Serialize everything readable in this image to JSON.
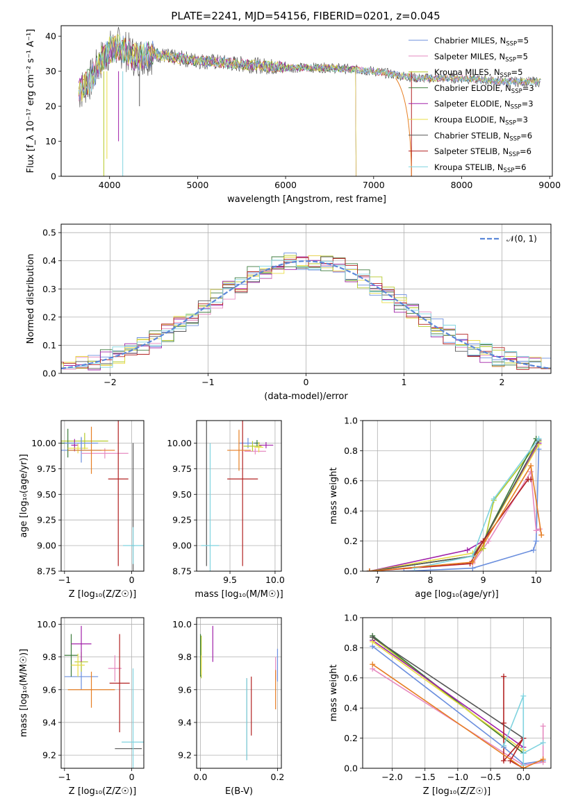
{
  "figure_title": "PLATE=2241, MJD=54156, FIBERID=0201, z=0.045",
  "colors": {
    "Chabrier MILES": "#6b8fde",
    "Salpeter MILES": "#e68ac0",
    "Kroupa MILES": "#b5c92a",
    "Chabrier ELODIE": "#3b7a3b",
    "Salpeter ELODIE": "#a020a8",
    "Kroupa ELODIE": "#e9dc45",
    "Chabrier STELIB": "#555555",
    "Salpeter STELIB": "#b22222",
    "Kroupa STELIB": "#7fd3df",
    "orange": "#e67e22",
    "gaussian": "#5b87d8"
  },
  "chart_data": [
    {
      "id": "spectrum",
      "type": "line",
      "xlabel": "wavelength [Angstrom, rest frame]",
      "ylabel": "Flux [f_λ 10⁻¹⁷ erg cm⁻² s⁻¹ A⁻¹]",
      "xlim": [
        3450,
        9030
      ],
      "ylim": [
        0,
        43
      ],
      "xticks": [
        4000,
        5000,
        6000,
        7000,
        8000,
        9000
      ],
      "yticks": [
        0,
        10,
        20,
        30,
        40
      ],
      "legend_position": "top-right",
      "legend": [
        {
          "label": "Chabrier MILES, N",
          "sub": "SSP",
          "tail": "=5"
        },
        {
          "label": "Salpeter MILES, N",
          "sub": "SSP",
          "tail": "=5"
        },
        {
          "label": "Kroupa MILES, N",
          "sub": "SSP",
          "tail": "=5"
        },
        {
          "label": "Chabrier ELODIE, N",
          "sub": "SSP",
          "tail": "=3"
        },
        {
          "label": "Salpeter ELODIE, N",
          "sub": "SSP",
          "tail": "=3"
        },
        {
          "label": "Kroupa ELODIE, N",
          "sub": "SSP",
          "tail": "=3"
        },
        {
          "label": "Chabrier STELIB, N",
          "sub": "SSP",
          "tail": "=6"
        },
        {
          "label": "Salpeter STELIB, N",
          "sub": "SSP",
          "tail": "=6"
        },
        {
          "label": "Kroupa STELIB, N",
          "sub": "SSP",
          "tail": "=6"
        }
      ],
      "data_envelope": {
        "x": [
          3650,
          3800,
          3900,
          4000,
          4100,
          4300,
          4500,
          4700,
          5000,
          5500,
          6000,
          6500,
          7000,
          7500,
          8000,
          8500,
          8900
        ],
        "y": [
          24,
          28,
          33,
          36,
          37,
          34,
          35,
          34,
          33,
          32,
          31,
          31,
          30,
          28,
          28,
          27,
          27
        ]
      }
    },
    {
      "id": "residuals",
      "type": "line",
      "xlabel": "(data-model)/error",
      "ylabel": "Normed distribution",
      "xlim": [
        -2.5,
        2.5
      ],
      "ylim": [
        0,
        0.53
      ],
      "xticks": [
        -2,
        -1,
        0,
        1,
        2
      ],
      "yticks": [
        0.0,
        0.1,
        0.2,
        0.3,
        0.4,
        0.5
      ],
      "grid": true,
      "legend_position": "top-right",
      "legend": [
        "𝒩(0, 1)"
      ]
    },
    {
      "id": "age_vs_Z",
      "type": "scatter",
      "xlabel": "Z [log₁₀(Z/Z☉)]",
      "ylabel": "age  [log₁₀(age/yr)]",
      "xlim": [
        -1.05,
        0.18
      ],
      "ylim": [
        8.75,
        10.22
      ],
      "xticks": [
        -1,
        0
      ],
      "yticks": [
        8.75,
        9.0,
        9.25,
        9.5,
        9.75,
        10.0
      ],
      "grid": true,
      "points": [
        {
          "c": "Chabrier MILES",
          "x": -0.75,
          "y": 9.93,
          "xe": 0.3,
          "ye": 0.12
        },
        {
          "c": "Salpeter MILES",
          "x": -0.4,
          "y": 9.9,
          "xe": 0.35,
          "ye": 0.05
        },
        {
          "c": "Kroupa MILES",
          "x": -0.7,
          "y": 10.02,
          "xe": 0.35,
          "ye": 0.08
        },
        {
          "c": "Chabrier ELODIE",
          "x": -0.95,
          "y": 10.0,
          "xe": 0.1,
          "ye": 0.14
        },
        {
          "c": "Salpeter ELODIE",
          "x": -0.85,
          "y": 9.98,
          "xe": 0.05,
          "ye": 0.06
        },
        {
          "c": "Kroupa ELODIE",
          "x": -0.8,
          "y": 9.95,
          "xe": 0.15,
          "ye": 0.05
        },
        {
          "c": "Chabrier STELIB",
          "x": 0.02,
          "y": 9.0,
          "xe": 0.02,
          "ye": 1.0
        },
        {
          "c": "Salpeter STELIB",
          "x": -0.2,
          "y": 9.65,
          "xe": 0.15,
          "ye": 0.85
        },
        {
          "c": "Kroupa STELIB",
          "x": 0.02,
          "y": 9.0,
          "xe": 0.15,
          "ye": 0.18
        },
        {
          "c": "orange",
          "x": -0.6,
          "y": 9.93,
          "xe": 0.35,
          "ye": 0.23
        },
        {
          "c": "Chabrier MILES",
          "x": -0.75,
          "y": 10.0,
          "xe": 0.25,
          "ye": 0.06
        }
      ]
    },
    {
      "id": "age_vs_mass",
      "type": "scatter",
      "xlabel": "mass [log₁₀(M/M☉)]",
      "ylabel": "",
      "xlim": [
        9.13,
        10.07
      ],
      "ylim": [
        8.75,
        10.22
      ],
      "xticks": [
        9.5,
        10.0
      ],
      "yticks": [
        8.75,
        9.0,
        9.25,
        9.5,
        9.75,
        10.0
      ],
      "grid": true,
      "points": [
        {
          "c": "Chabrier MILES",
          "x": 9.7,
          "y": 10.0,
          "xe": 0.1,
          "ye": 0.05
        },
        {
          "c": "Salpeter MILES",
          "x": 9.78,
          "y": 9.92,
          "xe": 0.12,
          "ye": 0.03
        },
        {
          "c": "Kroupa MILES",
          "x": 9.75,
          "y": 9.97,
          "xe": 0.1,
          "ye": 0.05
        },
        {
          "c": "Chabrier ELODIE",
          "x": 9.8,
          "y": 10.0,
          "xe": 0.03,
          "ye": 0.03
        },
        {
          "c": "Salpeter ELODIE",
          "x": 9.9,
          "y": 9.98,
          "xe": 0.08,
          "ye": 0.03
        },
        {
          "c": "Kroupa ELODIE",
          "x": 9.82,
          "y": 9.96,
          "xe": 0.05,
          "ye": 0.05
        },
        {
          "c": "Chabrier STELIB",
          "x": 9.24,
          "y": 9.55,
          "xe": 0.0,
          "ye": 0.75
        },
        {
          "c": "Salpeter STELIB",
          "x": 9.64,
          "y": 9.65,
          "xe": 0.17,
          "ye": 0.85
        },
        {
          "c": "Kroupa STELIB",
          "x": 9.28,
          "y": 9.0,
          "xe": 0.1,
          "ye": 1.0
        },
        {
          "c": "orange",
          "x": 9.6,
          "y": 9.93,
          "xe": 0.13,
          "ye": 0.2
        }
      ]
    },
    {
      "id": "mass_weight_vs_age",
      "type": "line",
      "xlabel": "age  [log₁₀(age/yr)]",
      "ylabel": "mass weight",
      "xlim": [
        6.72,
        10.28
      ],
      "ylim": [
        0.0,
        1.0
      ],
      "xticks": [
        7,
        8,
        9,
        10
      ],
      "yticks": [
        0.0,
        0.2,
        0.4,
        0.6,
        0.8,
        1.0
      ],
      "grid": true,
      "series": [
        {
          "c": "Chabrier MILES",
          "x": [
            7.5,
            8.8,
            9.95,
            10.0,
            10.05
          ],
          "y": [
            0.0,
            0.02,
            0.14,
            0.2,
            0.81
          ]
        },
        {
          "c": "Salpeter MILES",
          "x": [
            6.85,
            8.8,
            9.1,
            9.9,
            10.0,
            10.07
          ],
          "y": [
            0.0,
            0.05,
            0.2,
            0.66,
            0.27,
            0.28
          ]
        },
        {
          "c": "Kroupa MILES",
          "x": [
            6.85,
            8.8,
            9.0,
            9.2,
            10.05
          ],
          "y": [
            0.0,
            0.1,
            0.15,
            0.47,
            0.86
          ]
        },
        {
          "c": "Chabrier ELODIE",
          "x": [
            6.85,
            8.8,
            9.0,
            10.0
          ],
          "y": [
            0.0,
            0.1,
            0.2,
            0.88
          ]
        },
        {
          "c": "Salpeter ELODIE",
          "x": [
            6.85,
            8.7,
            9.0,
            10.05
          ],
          "y": [
            0.0,
            0.14,
            0.2,
            0.85
          ]
        },
        {
          "c": "Kroupa ELODIE",
          "x": [
            6.85,
            8.8,
            9.0,
            10.05
          ],
          "y": [
            0.0,
            0.12,
            0.2,
            0.84
          ]
        },
        {
          "c": "Chabrier STELIB",
          "x": [
            6.85,
            8.8,
            9.0,
            10.05
          ],
          "y": [
            0.0,
            0.1,
            0.2,
            0.87
          ]
        },
        {
          "c": "Salpeter STELIB",
          "x": [
            6.85,
            8.75,
            9.0,
            9.85,
            9.9
          ],
          "y": [
            0.0,
            0.05,
            0.2,
            0.61,
            0.61
          ]
        },
        {
          "c": "Kroupa STELIB",
          "x": [
            7.7,
            8.8,
            9.2,
            10.05
          ],
          "y": [
            0.02,
            0.1,
            0.48,
            0.88
          ]
        },
        {
          "c": "orange",
          "x": [
            6.85,
            8.8,
            9.9,
            10.1
          ],
          "y": [
            0.0,
            0.06,
            0.7,
            0.24
          ]
        }
      ]
    },
    {
      "id": "mass_vs_Z",
      "type": "scatter",
      "xlabel": "Z [log₁₀(Z/Z☉)]",
      "ylabel": "mass [log₁₀(M/M☉)]",
      "xlim": [
        -1.05,
        0.18
      ],
      "ylim": [
        9.12,
        10.04
      ],
      "xticks": [
        -1,
        0
      ],
      "yticks": [
        9.2,
        9.4,
        9.6,
        9.8,
        10.0
      ],
      "grid": true,
      "points": [
        {
          "c": "Chabrier MILES",
          "x": -0.75,
          "y": 9.68,
          "xe": 0.25,
          "ye": 0.08
        },
        {
          "c": "Salpeter MILES",
          "x": -0.25,
          "y": 9.73,
          "xe": 0.1,
          "ye": 0.08
        },
        {
          "c": "Kroupa MILES",
          "x": -0.75,
          "y": 9.77,
          "xe": 0.1,
          "ye": 0.06
        },
        {
          "c": "Chabrier ELODIE",
          "x": -0.9,
          "y": 9.81,
          "xe": 0.1,
          "ye": 0.13
        },
        {
          "c": "Salpeter ELODIE",
          "x": -0.75,
          "y": 9.88,
          "xe": 0.15,
          "ye": 0.11
        },
        {
          "c": "Kroupa ELODIE",
          "x": -0.8,
          "y": 9.75,
          "xe": 0.1,
          "ye": 0.07
        },
        {
          "c": "Chabrier STELIB",
          "x": -0.05,
          "y": 9.24,
          "xe": 0.2,
          "ye": 0.0
        },
        {
          "c": "Salpeter STELIB",
          "x": -0.18,
          "y": 9.64,
          "xe": 0.15,
          "ye": 0.3
        },
        {
          "c": "Kroupa STELIB",
          "x": 0.02,
          "y": 9.28,
          "xe": 0.17,
          "ye": 0.45
        },
        {
          "c": "orange",
          "x": -0.6,
          "y": 9.6,
          "xe": 0.35,
          "ye": 0.11
        }
      ]
    },
    {
      "id": "mass_vs_ebv",
      "type": "scatter",
      "xlabel": "E(B-V)",
      "ylabel": "",
      "xlim": [
        -0.01,
        0.21
      ],
      "ylim": [
        9.12,
        10.04
      ],
      "xticks": [
        0.0,
        0.2
      ],
      "yticks": [
        9.2,
        9.4,
        9.6,
        9.8,
        10.0
      ],
      "grid": true,
      "points": [
        {
          "c": "Chabrier MILES",
          "x": 0.2,
          "y": 9.75,
          "xe": 0.0,
          "ye": 0.1
        },
        {
          "c": "Salpeter MILES",
          "x": 0.195,
          "y": 9.73,
          "xe": 0.0,
          "ye": 0.07
        },
        {
          "c": "Kroupa MILES",
          "x": 0.002,
          "y": 9.8,
          "xe": 0.0,
          "ye": 0.13
        },
        {
          "c": "Chabrier ELODIE",
          "x": 0.0,
          "y": 9.81,
          "xe": 0.0,
          "ye": 0.13
        },
        {
          "c": "Salpeter ELODIE",
          "x": 0.032,
          "y": 9.88,
          "xe": 0.0,
          "ye": 0.11
        },
        {
          "c": "Kroupa ELODIE",
          "x": 0.002,
          "y": 9.75,
          "xe": 0.0,
          "ye": 0.06
        },
        {
          "c": "Chabrier STELIB",
          "x": 0.12,
          "y": 9.42,
          "xe": 0.0,
          "ye": 0.25
        },
        {
          "c": "Salpeter STELIB",
          "x": 0.132,
          "y": 9.5,
          "xe": 0.0,
          "ye": 0.18
        },
        {
          "c": "Kroupa STELIB",
          "x": 0.12,
          "y": 9.42,
          "xe": 0.0,
          "ye": 0.25
        },
        {
          "c": "orange",
          "x": 0.195,
          "y": 9.6,
          "xe": 0.0,
          "ye": 0.12
        }
      ]
    },
    {
      "id": "mass_weight_vs_Z",
      "type": "line",
      "xlabel": "Z [log₁₀(Z/Z☉)]",
      "ylabel": "mass weight",
      "xlim": [
        -2.45,
        0.42
      ],
      "ylim": [
        0.0,
        1.0
      ],
      "xticks": [
        -2.0,
        -1.5,
        -1.0,
        -0.5,
        0.0
      ],
      "yticks": [
        0.0,
        0.2,
        0.4,
        0.6,
        0.8,
        1.0
      ],
      "grid": true,
      "series": [
        {
          "c": "Chabrier MILES",
          "x": [
            -2.3,
            -0.3,
            0.0,
            0.3
          ],
          "y": [
            0.81,
            0.14,
            0.03,
            0.05
          ]
        },
        {
          "c": "Salpeter MILES",
          "x": [
            -2.3,
            0.0,
            0.3,
            0.3
          ],
          "y": [
            0.66,
            0.02,
            0.04,
            0.28
          ]
        },
        {
          "c": "Kroupa MILES",
          "x": [
            -2.3,
            0.0
          ],
          "y": [
            0.87,
            0.1
          ]
        },
        {
          "c": "Chabrier ELODIE",
          "x": [
            -2.3,
            0.0
          ],
          "y": [
            0.88,
            0.1
          ]
        },
        {
          "c": "Salpeter ELODIE",
          "x": [
            -2.3,
            0.0,
            0.0
          ],
          "y": [
            0.85,
            0.14,
            0.2
          ]
        },
        {
          "c": "Kroupa ELODIE",
          "x": [
            -2.3,
            0.0
          ],
          "y": [
            0.84,
            0.12
          ]
        },
        {
          "c": "Chabrier STELIB",
          "x": [
            -2.3,
            0.0,
            0.0
          ],
          "y": [
            0.87,
            0.2,
            0.1
          ]
        },
        {
          "c": "Salpeter STELIB",
          "x": [
            -0.3,
            -0.3,
            -0.3,
            0.0,
            -0.2,
            0.0
          ],
          "y": [
            0.61,
            0.3,
            0.05,
            0.2,
            0.05,
            0.0
          ]
        },
        {
          "c": "Kroupa STELIB",
          "x": [
            -0.3,
            0.0,
            0.0,
            0.0,
            0.3
          ],
          "y": [
            0.15,
            0.48,
            0.02,
            0.1,
            0.17
          ]
        },
        {
          "c": "orange",
          "x": [
            -2.3,
            0.0,
            0.3
          ],
          "y": [
            0.69,
            0.0,
            0.06
          ]
        }
      ]
    }
  ]
}
